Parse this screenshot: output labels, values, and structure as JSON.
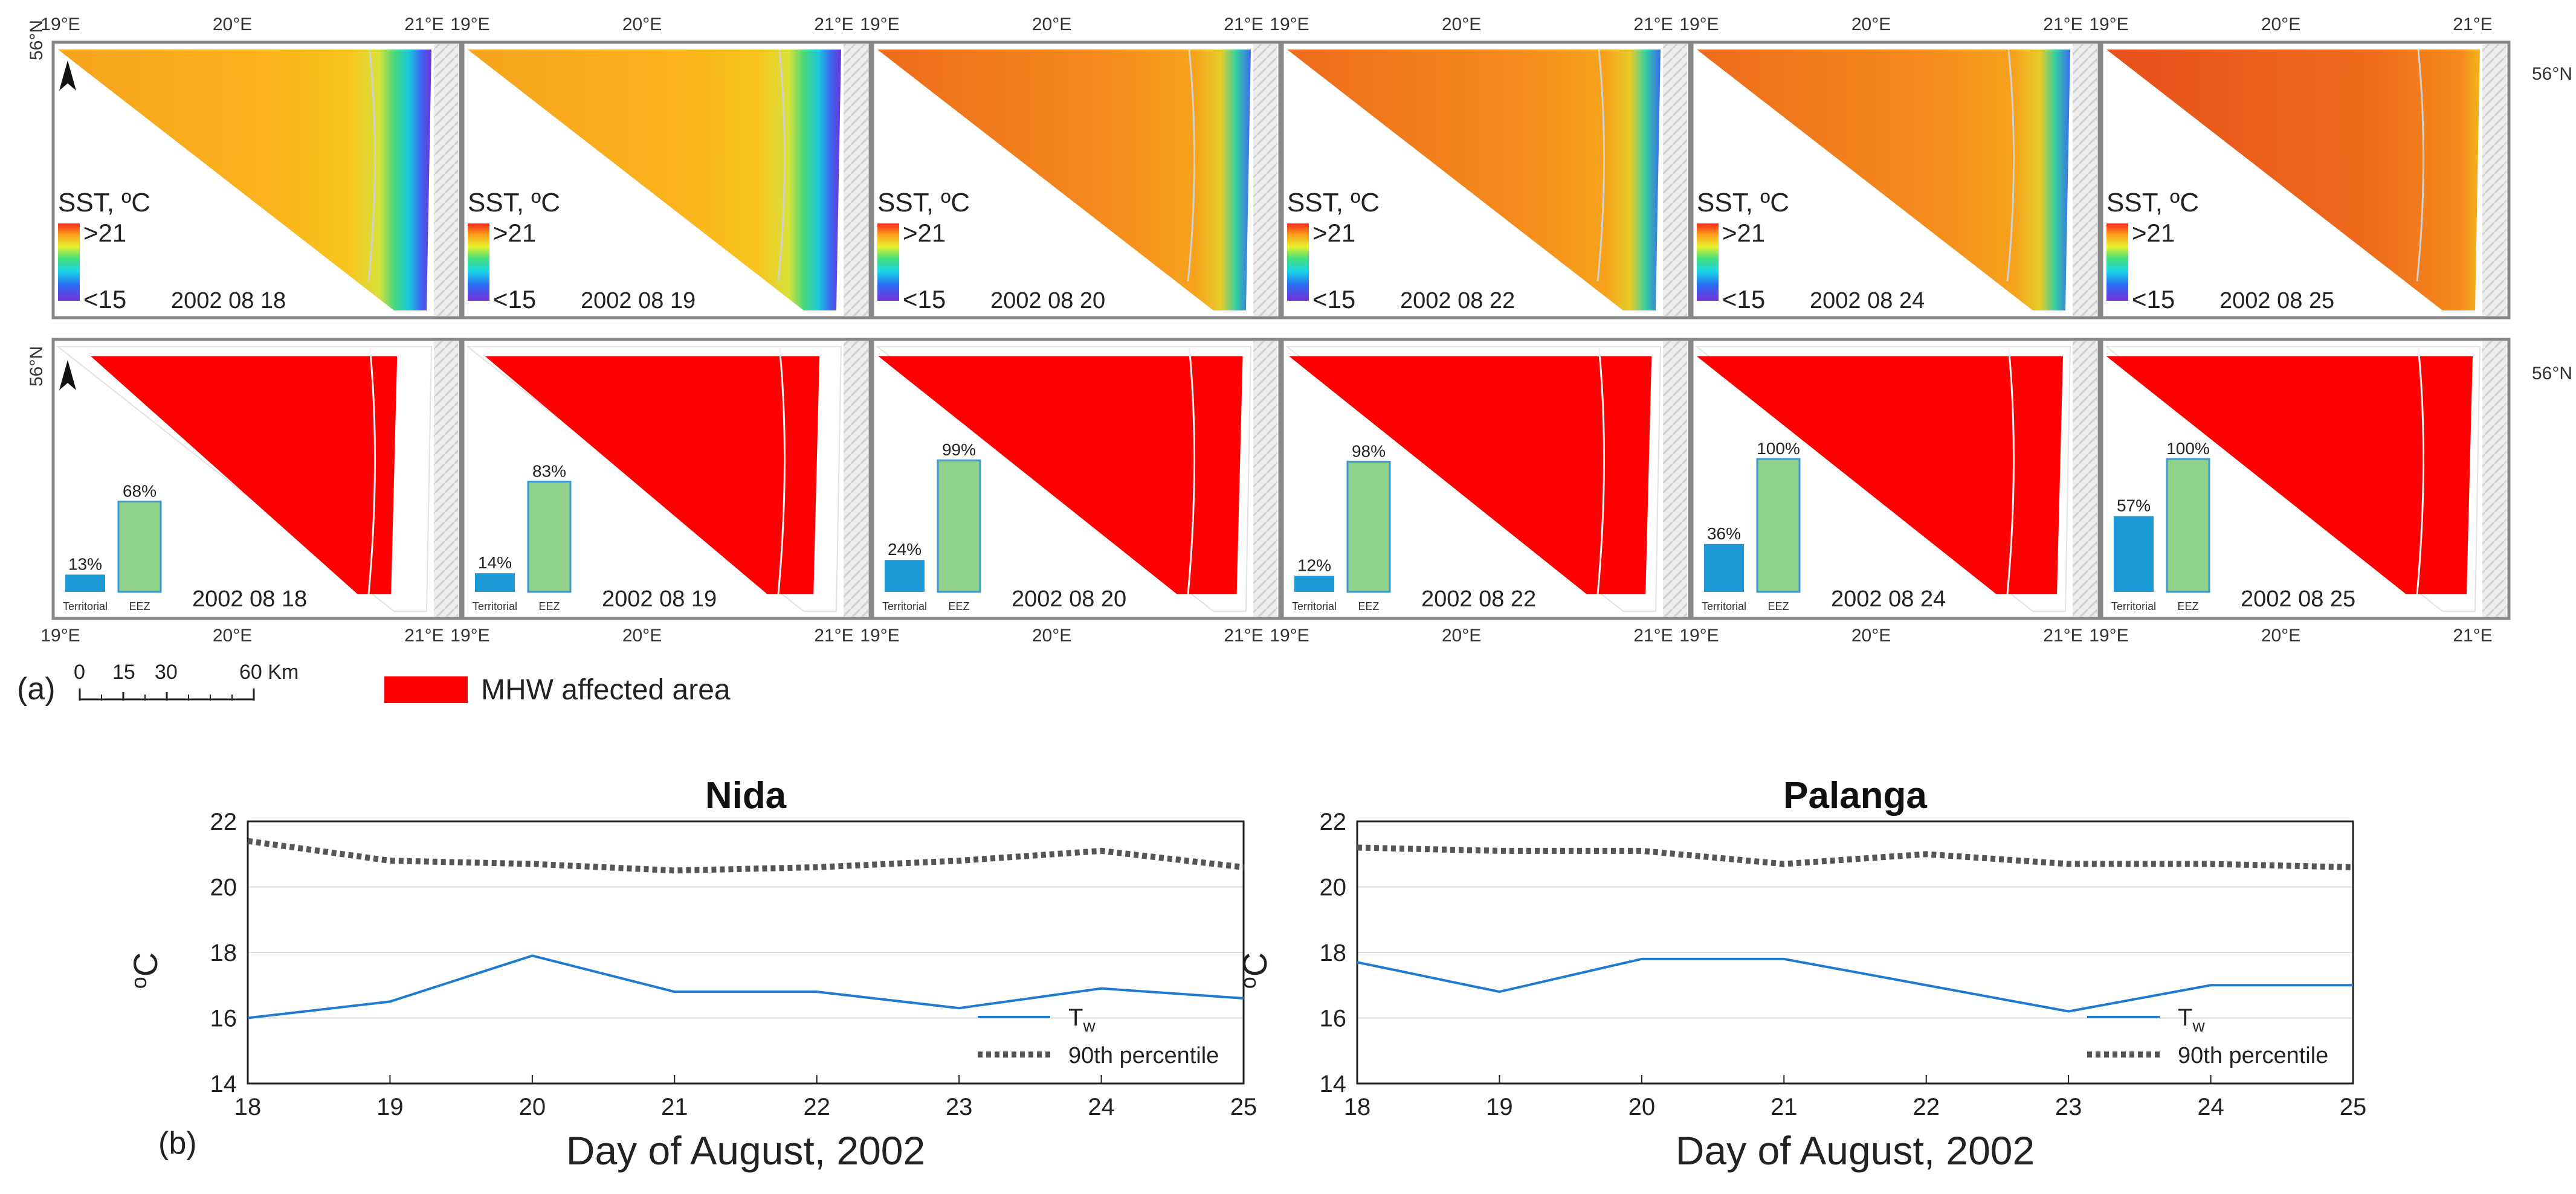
{
  "figure": {
    "panel_a_label": "(a)",
    "panel_b_label": "(b)",
    "scalebar": {
      "ticks": [
        "0",
        "15",
        "30",
        "60 Km"
      ]
    },
    "legend_mhw": "MHW affected area",
    "colors": {
      "mhw": "#ff0000",
      "territorial_bar": "#1e9bd7",
      "eez_bar": "#8fd18b",
      "eez_bar_border": "#3a9ad0",
      "frame": "#888888",
      "land": "#e6e6e6",
      "tw_line": "#1f7bd1",
      "p90_line": "#555555"
    },
    "axis_labels": {
      "lon": [
        "19°E",
        "20°E",
        "21°E"
      ],
      "lat": "56°N"
    }
  },
  "maps": {
    "sst_title": "SST, ºC",
    "sst_max": ">21",
    "sst_min": "<15",
    "bar_labels": {
      "territorial": "Territorial",
      "eez": "EEZ"
    },
    "panels": [
      {
        "date": "2002 08 18",
        "territorial_pct": 13,
        "eez_pct": 68,
        "territorial_label": "13%",
        "eez_label": "68%"
      },
      {
        "date": "2002 08 19",
        "territorial_pct": 14,
        "eez_pct": 83,
        "territorial_label": "14%",
        "eez_label": "83%"
      },
      {
        "date": "2002 08 20",
        "territorial_pct": 24,
        "eez_pct": 99,
        "territorial_label": "24%",
        "eez_label": "99%"
      },
      {
        "date": "2002 08 22",
        "territorial_pct": 12,
        "eez_pct": 98,
        "territorial_label": "12%",
        "eez_label": "98%"
      },
      {
        "date": "2002 08 24",
        "territorial_pct": 36,
        "eez_pct": 100,
        "territorial_label": "36%",
        "eez_label": "100%"
      },
      {
        "date": "2002 08 25",
        "territorial_pct": 57,
        "eez_pct": 100,
        "territorial_label": "57%",
        "eez_label": "100%"
      }
    ]
  },
  "chart_data": [
    {
      "type": "line",
      "title": "Nida",
      "xlabel": "Day of August, 2002",
      "ylabel": "oC",
      "x": [
        18,
        19,
        20,
        21,
        22,
        23,
        24,
        25
      ],
      "xlim": [
        18,
        25
      ],
      "ylim": [
        14,
        22
      ],
      "yticks": [
        14,
        16,
        18,
        20,
        22
      ],
      "grid": true,
      "legend_position": "bottom-right",
      "series": [
        {
          "name": "Tw",
          "style": "solid",
          "values": [
            16.0,
            16.5,
            17.9,
            16.8,
            16.8,
            16.3,
            16.9,
            16.6
          ]
        },
        {
          "name": "90th percentile",
          "style": "dotted",
          "values": [
            21.4,
            20.8,
            20.7,
            20.5,
            20.6,
            20.8,
            21.1,
            20.6
          ]
        }
      ]
    },
    {
      "type": "line",
      "title": "Palanga",
      "xlabel": "Day of August, 2002",
      "ylabel": "oC",
      "x": [
        18,
        19,
        20,
        21,
        22,
        23,
        24,
        25
      ],
      "xlim": [
        18,
        25
      ],
      "ylim": [
        14,
        22
      ],
      "yticks": [
        14,
        16,
        18,
        20,
        22
      ],
      "grid": true,
      "legend_position": "bottom-right",
      "series": [
        {
          "name": "Tw",
          "style": "solid",
          "values": [
            17.7,
            16.8,
            17.8,
            17.8,
            17.0,
            16.2,
            17.0,
            17.0
          ]
        },
        {
          "name": "90th percentile",
          "style": "dotted",
          "values": [
            21.2,
            21.1,
            21.1,
            20.7,
            21.0,
            20.7,
            20.7,
            20.6
          ]
        }
      ]
    }
  ],
  "legend": {
    "tw_main": "T",
    "tw_sub": "w",
    "p90": "90th percentile"
  }
}
